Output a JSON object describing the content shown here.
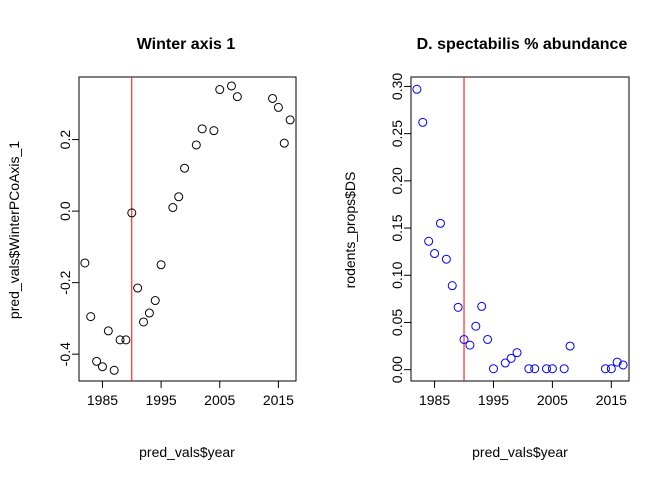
{
  "chart_data": [
    {
      "type": "scatter",
      "title": "Winter axis 1",
      "xlabel": "pred_vals$year",
      "ylabel": "pred_vals$WinterPCoAxis_1",
      "xlim": [
        1981,
        2018
      ],
      "ylim": [
        -0.475,
        0.375
      ],
      "xticks": [
        1985,
        1995,
        2005,
        2015
      ],
      "yticks": [
        -0.4,
        -0.2,
        0.0,
        0.2
      ],
      "ytick_labels": [
        "-0.4",
        "-0.2",
        "0.0",
        "0.2"
      ],
      "grid": false,
      "point_color": "#000000",
      "vline": {
        "x": 1990,
        "color": "#ff0000"
      },
      "x": [
        1982,
        1983,
        1984,
        1985,
        1986,
        1987,
        1988,
        1989,
        1990,
        1991,
        1992,
        1993,
        1994,
        1995,
        1997,
        1998,
        1999,
        2001,
        2002,
        2004,
        2005,
        2007,
        2008,
        2014,
        2015,
        2016,
        2017
      ],
      "y": [
        -0.145,
        -0.295,
        -0.42,
        -0.435,
        -0.335,
        -0.445,
        -0.36,
        -0.36,
        -0.005,
        -0.215,
        -0.31,
        -0.285,
        -0.25,
        -0.15,
        0.01,
        0.04,
        0.12,
        0.185,
        0.23,
        0.225,
        0.34,
        0.35,
        0.32,
        0.315,
        0.29,
        0.19,
        0.255
      ]
    },
    {
      "type": "scatter",
      "title": "D. spectabilis % abundance",
      "xlabel": "pred_vals$year",
      "ylabel": "rodents_props$DS",
      "xlim": [
        1981,
        2018
      ],
      "ylim": [
        -0.012,
        0.31
      ],
      "xticks": [
        1985,
        1995,
        2005,
        2015
      ],
      "yticks": [
        0.0,
        0.05,
        0.1,
        0.15,
        0.2,
        0.25,
        0.3
      ],
      "ytick_labels": [
        "0.00",
        "0.05",
        "0.10",
        "0.15",
        "0.20",
        "0.25",
        "0.30"
      ],
      "grid": false,
      "point_color": "#0000ff",
      "vline": {
        "x": 1990,
        "color": "#ff0000"
      },
      "x": [
        1982,
        1983,
        1984,
        1985,
        1986,
        1987,
        1988,
        1989,
        1990,
        1991,
        1992,
        1993,
        1994,
        1995,
        1997,
        1998,
        1999,
        2001,
        2002,
        2004,
        2005,
        2007,
        2008,
        2014,
        2015,
        2016,
        2017
      ],
      "y": [
        0.297,
        0.262,
        0.136,
        0.123,
        0.155,
        0.117,
        0.089,
        0.066,
        0.032,
        0.026,
        0.046,
        0.067,
        0.032,
        0.001,
        0.007,
        0.012,
        0.018,
        0.001,
        0.001,
        0.001,
        0.001,
        0.001,
        0.025,
        0.001,
        0.001,
        0.008,
        0.005
      ]
    }
  ]
}
